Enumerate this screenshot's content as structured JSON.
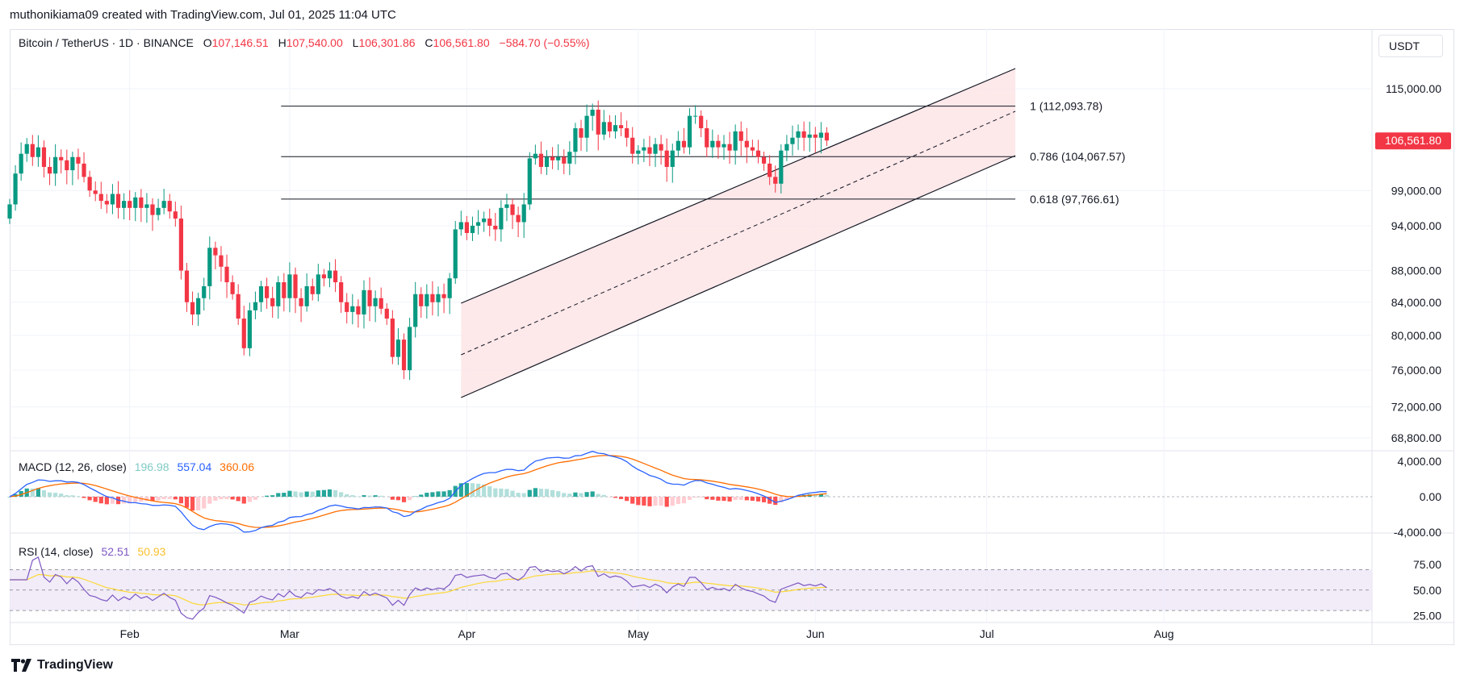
{
  "header": {
    "attribution": "muthonikiama09 created with TradingView.com, Jul 01, 2025 11:04 UTC"
  },
  "legend": {
    "symbol": "Bitcoin / TetherUS · 1D · BINANCE",
    "open_label": "O",
    "open": "107,146.51",
    "high_label": "H",
    "high": "107,540.00",
    "low_label": "L",
    "low": "106,301.86",
    "close_label": "C",
    "close": "106,561.80",
    "change": "−584.70 (−0.55%)"
  },
  "currency_button": "USDT",
  "price_tag": "106,561.80",
  "macd": {
    "label": "MACD (12, 26, close)",
    "hist": "196.98",
    "macd": "557.04",
    "signal": "360.06"
  },
  "rsi": {
    "label": "RSI (14, close)",
    "rsi": "52.51",
    "ma": "50.93"
  },
  "footer": {
    "brand": "TradingView"
  },
  "colors": {
    "up": "#089981",
    "down": "#f23645",
    "macd_line": "#2962ff",
    "signal_line": "#ff6d00",
    "hist_up_strong": "#26a69a",
    "hist_up_weak": "#b2dfdb",
    "hist_down_strong": "#ff5252",
    "hist_down_weak": "#ffcdd2",
    "rsi_line": "#7e57c2",
    "rsi_ma": "#fdd835",
    "channel_fill": "#fde6e8",
    "rsi_band": "#ede7f6"
  },
  "chart_data": {
    "type": "candlestick",
    "price_axis_ticks": [
      "115,000.00",
      "106,561.80",
      "99,000.00",
      "94,000.00",
      "88,000.00",
      "84,000.00",
      "80,000.00",
      "76,000.00",
      "72,000.00",
      "68,800.00"
    ],
    "price_axis_values": [
      115000,
      106561.8,
      99000,
      94000,
      88000,
      84000,
      80000,
      76000,
      72000,
      68800
    ],
    "x_labels": [
      "Feb",
      "Mar",
      "Apr",
      "May",
      "Jun",
      "Jul",
      "Aug"
    ],
    "fib_levels": [
      {
        "label": "1 (112,093.78)",
        "value": 112093.78
      },
      {
        "label": "0.786 (104,067.57)",
        "value": 104067.57
      },
      {
        "label": "0.618 (97,766.61)",
        "value": 97766.61
      }
    ],
    "macd_axis_ticks": [
      "4,000.00",
      "0.00",
      "-4,000.00"
    ],
    "rsi_axis_ticks": [
      "75.00",
      "50.00",
      "25.00"
    ],
    "closes": [
      97000,
      101500,
      104500,
      106000,
      104000,
      105500,
      102500,
      101500,
      104000,
      103500,
      102000,
      104000,
      103000,
      101000,
      99000,
      98500,
      97500,
      97000,
      98500,
      96500,
      97500,
      96500,
      98000,
      96500,
      97000,
      95500,
      96500,
      97500,
      96000,
      95000,
      88000,
      84000,
      82500,
      84500,
      86000,
      91000,
      90000,
      88500,
      86500,
      85000,
      82000,
      78500,
      83000,
      84000,
      86000,
      84500,
      83500,
      86500,
      84500,
      87500,
      84500,
      83500,
      86000,
      85000,
      87500,
      87000,
      88000,
      86500,
      84000,
      82800,
      83500,
      82500,
      85500,
      83500,
      84500,
      83200,
      82000,
      77500,
      79500,
      76000,
      81000,
      85000,
      83500,
      85000,
      84000,
      85000,
      84500,
      87000,
      93500,
      94500,
      93000,
      94000,
      94500,
      95000,
      94000,
      93500,
      96500,
      97000,
      95500,
      94500,
      97000,
      103800,
      104500,
      102500,
      104000,
      103500,
      104000,
      103000,
      104800,
      108500,
      107000,
      110500,
      111500,
      107500,
      109500,
      108000,
      109000,
      108500,
      107000,
      104500,
      105000,
      105500,
      104500,
      106000,
      105000,
      102500,
      105000,
      106500,
      105500,
      110500,
      110500,
      108500,
      105500,
      106500,
      105500,
      106000,
      105000,
      108000,
      106500,
      105500,
      105000,
      104000,
      103000,
      101000,
      100000,
      105000,
      106000,
      107000,
      108000,
      107000,
      107500,
      107000,
      107800,
      106561.8
    ]
  }
}
